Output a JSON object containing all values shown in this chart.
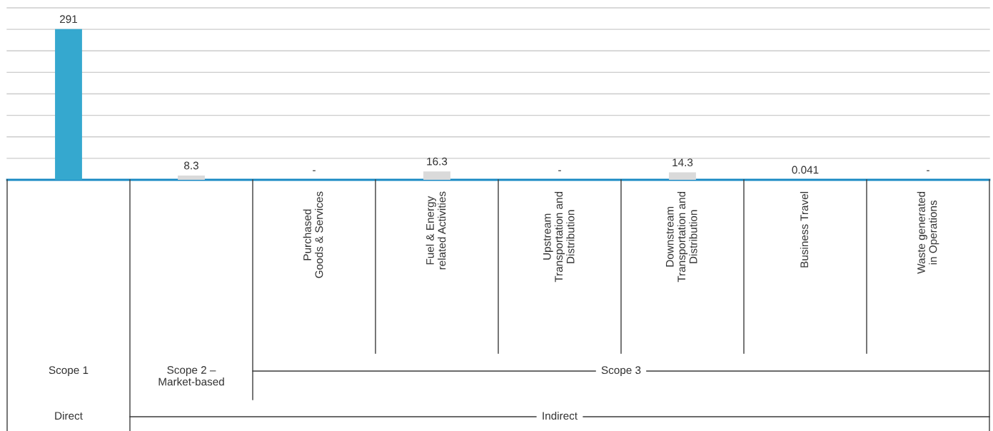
{
  "chart_data": {
    "type": "bar",
    "categories": [
      null,
      null,
      "Purchased\nGoods & Services",
      "Fuel & Energy\nrelated Activities",
      "Upstream\nTransportation and\nDistribution",
      "Downstream\nTransportation and\nDistribution",
      "Business Travel",
      "Waste generated\nin Operations"
    ],
    "values": [
      291,
      8.3,
      null,
      16.3,
      null,
      14.3,
      0.041,
      null
    ],
    "colors": [
      "#35a8cf",
      "#dadada",
      "#dadada",
      "#dadada",
      "#dadada",
      "#dadada",
      "#dadada",
      "#dadada"
    ],
    "value_labels": [
      "291",
      "8.3",
      "-",
      "16.3",
      "-",
      "14.3",
      "0.041",
      "-"
    ],
    "ylim": [
      0,
      332
    ],
    "yticks": [
      {
        "value": 0,
        "label": null
      },
      {
        "value": 41.5,
        "label": null
      },
      {
        "value": 83,
        "label": null
      },
      {
        "value": 124.5,
        "label": null
      },
      {
        "value": 166,
        "label": null
      },
      {
        "value": 207.5,
        "label": null
      },
      {
        "value": 249,
        "label": null
      },
      {
        "value": 290.5,
        "label": null
      },
      {
        "value": 332,
        "label": null
      }
    ],
    "grid": "y",
    "legend": false,
    "annotations": [
      "Scope 1",
      "Scope 2 –\nMarket-based",
      "Scope 3",
      "Direct",
      "Indirect"
    ]
  }
}
